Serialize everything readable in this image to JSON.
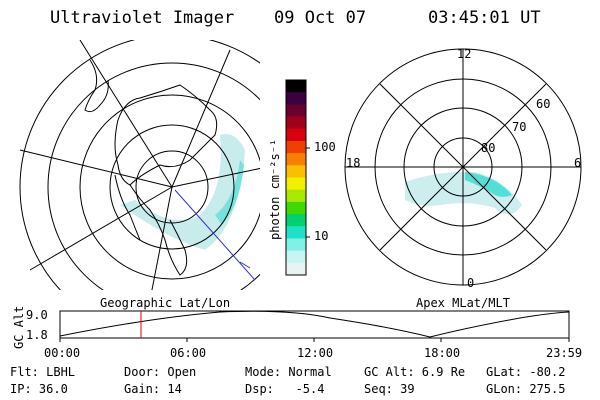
{
  "header": {
    "title": "Ultraviolet Imager",
    "date": "09 Oct 07",
    "time": "03:45:01 UT"
  },
  "colorbar": {
    "label": "photon cm⁻²s⁻¹",
    "ticks": [
      "100",
      "10"
    ],
    "colors": [
      "#000000",
      "#3a0040",
      "#6a0030",
      "#a00018",
      "#d80010",
      "#f04000",
      "#f88000",
      "#f8c000",
      "#f0f000",
      "#a8e800",
      "#40d800",
      "#00d070",
      "#20e0c8",
      "#80f0e8",
      "#c8f4f4",
      "#e8f4f4"
    ]
  },
  "left_map": {
    "caption": "Geographic Lat/Lon"
  },
  "right_map": {
    "caption": "Apex MLat/MLT",
    "mlt_labels": [
      "12",
      "18",
      "6",
      "0"
    ],
    "lat_labels": [
      "60",
      "70",
      "80"
    ]
  },
  "alt_plot": {
    "ylabel": "GC Alt",
    "yticks": [
      "9.0",
      "1.8"
    ],
    "xticks": [
      "00:00",
      "06:00",
      "12:00",
      "18:00",
      "23:59"
    ],
    "line_color": "#000000",
    "marker_color": "#e00000"
  },
  "status": {
    "flt": "Flt: LBHL",
    "ip": "IP: 36.0",
    "door": "Door: Open",
    "gain": "Gain: 14",
    "mode": "Mode: Normal",
    "dsp": "Dsp:   -5.4",
    "gcalt": "GC Alt: 6.9 Re",
    "seq": "Seq: 39",
    "glat": "GLat: -80.2",
    "glon": "GLon: 275.5"
  },
  "accent_colors": {
    "aurora": "#40e0d0",
    "blue_line": "#3030d0"
  }
}
